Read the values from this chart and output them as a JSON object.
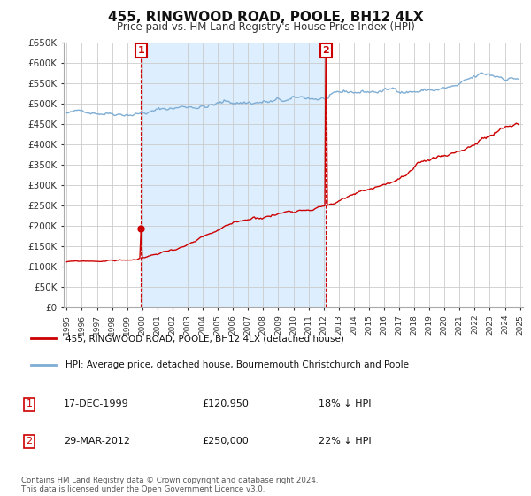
{
  "title": "455, RINGWOOD ROAD, POOLE, BH12 4LX",
  "subtitle": "Price paid vs. HM Land Registry's House Price Index (HPI)",
  "ylabel_ticks": [
    "£0",
    "£50K",
    "£100K",
    "£150K",
    "£200K",
    "£250K",
    "£300K",
    "£350K",
    "£400K",
    "£450K",
    "£500K",
    "£550K",
    "£600K",
    "£650K"
  ],
  "ytick_values": [
    0,
    50000,
    100000,
    150000,
    200000,
    250000,
    300000,
    350000,
    400000,
    450000,
    500000,
    550000,
    600000,
    650000
  ],
  "ylim": [
    0,
    650000
  ],
  "x_start_year": 1995,
  "x_end_year": 2025,
  "background_color": "#ffffff",
  "grid_color": "#cccccc",
  "hpi_color": "#7eadd4",
  "hpi_fill_color": "#ddeeff",
  "price_color": "#cc0000",
  "sale1_date": "17-DEC-1999",
  "sale1_price": 120950,
  "sale1_price_str": "£120,950",
  "sale1_hpi_diff": "18% ↓ HPI",
  "sale2_date": "29-MAR-2012",
  "sale2_price": 250000,
  "sale2_price_str": "£250,000",
  "sale2_hpi_diff": "22% ↓ HPI",
  "legend_label1": "455, RINGWOOD ROAD, POOLE, BH12 4LX (detached house)",
  "legend_label2": "HPI: Average price, detached house, Bournemouth Christchurch and Poole",
  "footnote": "Contains HM Land Registry data © Crown copyright and database right 2024.\nThis data is licensed under the Open Government Licence v3.0."
}
